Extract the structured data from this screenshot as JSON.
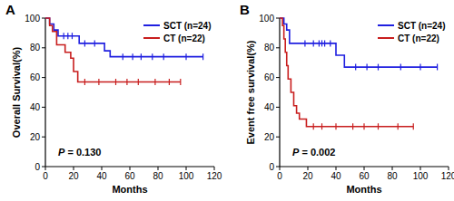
{
  "chart_data": [
    {
      "type": "step",
      "title": "A",
      "x_label": "Months",
      "y_label": "Overall Survival(%)",
      "xlim": [
        0,
        120
      ],
      "xticks": [
        0,
        20,
        40,
        60,
        80,
        100,
        120
      ],
      "ylim": [
        0,
        100
      ],
      "yticks": [
        0,
        20,
        40,
        60,
        80,
        100
      ],
      "legend": "upper right",
      "annotations": [
        "P = 0.130"
      ],
      "series": [
        {
          "name": "SCT (n=24)",
          "color": "#1f1fe0",
          "marker": "tick",
          "x": [
            0,
            3,
            6,
            9,
            24,
            42,
            46,
            112
          ],
          "values": [
            100,
            96,
            92,
            88,
            83,
            78,
            74,
            74
          ],
          "censored_x": [
            13,
            16,
            19,
            28,
            35,
            55,
            62,
            68,
            76,
            84,
            100,
            112
          ],
          "censored_values": [
            88,
            88,
            88,
            83,
            83,
            74,
            74,
            74,
            74,
            74,
            74,
            74
          ]
        },
        {
          "name": "CT (n=22)",
          "color": "#c81e1e",
          "marker": "tick",
          "x": [
            0,
            3,
            5,
            8,
            14,
            18,
            20,
            23,
            96
          ],
          "values": [
            100,
            95,
            91,
            82,
            77,
            73,
            64,
            57,
            57
          ],
          "censored_x": [
            28,
            38,
            50,
            58,
            66,
            78,
            88,
            96
          ],
          "censored_values": [
            57,
            57,
            57,
            57,
            57,
            57,
            57,
            57
          ]
        }
      ]
    },
    {
      "type": "step",
      "title": "B",
      "x_label": "Months",
      "y_label": "Event free survival(%)",
      "xlim": [
        0,
        120
      ],
      "xticks": [
        0,
        20,
        40,
        60,
        80,
        100,
        120
      ],
      "ylim": [
        0,
        100
      ],
      "yticks": [
        0,
        20,
        40,
        60,
        80,
        100
      ],
      "legend": "upper right",
      "annotations": [
        "P = 0.002"
      ],
      "series": [
        {
          "name": "SCT (n=24)",
          "color": "#1f1fe0",
          "marker": "tick",
          "x": [
            0,
            3,
            5,
            7,
            40,
            46,
            112
          ],
          "values": [
            100,
            96,
            92,
            83,
            75,
            67,
            67
          ],
          "censored_x": [
            18,
            24,
            28,
            30,
            32,
            36,
            54,
            62,
            70,
            86,
            100,
            112
          ],
          "censored_values": [
            83,
            83,
            83,
            83,
            83,
            83,
            67,
            67,
            67,
            67,
            67,
            67
          ]
        },
        {
          "name": "CT (n=22)",
          "color": "#c81e1e",
          "marker": "tick",
          "x": [
            0,
            2,
            3,
            4,
            5,
            6,
            8,
            10,
            12,
            14,
            19,
            95
          ],
          "values": [
            100,
            95,
            86,
            77,
            68,
            59,
            50,
            41,
            36,
            32,
            27,
            27
          ],
          "censored_x": [
            24,
            30,
            40,
            52,
            60,
            70,
            84,
            95
          ],
          "censored_values": [
            27,
            27,
            27,
            27,
            27,
            27,
            27,
            27
          ]
        }
      ]
    }
  ]
}
